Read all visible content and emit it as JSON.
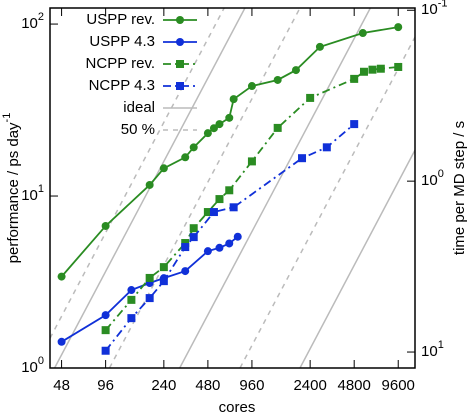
{
  "chart_data": {
    "type": "line",
    "x_label": "cores",
    "y_label": "performance / ps day^-1",
    "y2_label": "time per MD step / s",
    "xscale": "log",
    "yscale": "log",
    "y2scale": "log",
    "xlim": [
      40,
      12500
    ],
    "ylim": [
      1,
      124
    ],
    "y2lim": [
      12.4,
      0.097
    ],
    "xticks": [
      48,
      96,
      240,
      480,
      960,
      2400,
      4800,
      9600
    ],
    "yticks": [
      {
        "value": 1,
        "label": "10^0"
      },
      {
        "value": 10,
        "label": "10^1"
      },
      {
        "value": 100,
        "label": "10^2"
      }
    ],
    "y2ticks": [
      {
        "value": 0.1,
        "label": "10^-1"
      },
      {
        "value": 1,
        "label": "10^0"
      },
      {
        "value": 10,
        "label": "10^1"
      }
    ],
    "legend": "top-left",
    "series": [
      {
        "name": "USPP rev.",
        "color": "#2a8c22",
        "marker": "circle",
        "dash": "solid",
        "x": [
          48,
          96,
          192,
          240,
          336,
          384,
          480,
          528,
          576,
          672,
          720,
          960,
          1440,
          1920,
          2800,
          5500,
          9600
        ],
        "values": [
          3.4,
          6.7,
          11.6,
          14.5,
          16.8,
          19.2,
          23.2,
          24.8,
          26.2,
          28.5,
          36.6,
          43.6,
          47.3,
          54,
          73.7,
          88.7,
          96
        ]
      },
      {
        "name": "USPP 4.3",
        "color": "#1030d8",
        "marker": "circle",
        "dash": "solid",
        "x": [
          48,
          96,
          144,
          192,
          240,
          336,
          480,
          576,
          672,
          768
        ],
        "values": [
          1.42,
          2.03,
          2.84,
          3.12,
          3.33,
          3.66,
          4.78,
          5.0,
          5.3,
          5.8
        ]
      },
      {
        "name": "NCPP rev.",
        "color": "#2a8c22",
        "marker": "square",
        "dash": "dashdot",
        "x": [
          96,
          144,
          192,
          240,
          336,
          384,
          480,
          576,
          672,
          960,
          1440,
          2400,
          4800,
          5600,
          6400,
          7300,
          9600
        ],
        "values": [
          1.66,
          2.49,
          3.34,
          3.86,
          5.33,
          6.5,
          8.07,
          9.6,
          10.8,
          15.9,
          24.9,
          37.2,
          48,
          52.8,
          54.3,
          55,
          56.3
        ]
      },
      {
        "name": "NCPP 4.3",
        "color": "#1030d8",
        "marker": "square",
        "dash": "dashdot",
        "x": [
          96,
          144,
          192,
          240,
          336,
          384,
          528,
          720,
          2112,
          3120,
          4800
        ],
        "values": [
          1.26,
          1.95,
          2.55,
          3.2,
          5.05,
          5.77,
          8.07,
          8.6,
          16.6,
          19.2,
          26.2
        ]
      }
    ],
    "reference_lines": [
      {
        "name": "ideal",
        "color": "#bbbbbb",
        "dash": "solid",
        "segments": [
          {
            "x": [
              43,
              860
            ],
            "values": [
              1,
              124
            ]
          },
          {
            "x": [
              308,
              6190
            ],
            "values": [
              1,
              124
            ]
          },
          {
            "x": [
              2045,
              12500
            ],
            "values": [
              1,
              18.5
            ]
          }
        ]
      },
      {
        "name": "50 %",
        "color": "#bbbbbb",
        "dash": "dashed",
        "segments": [
          {
            "x": [
              40,
              620
            ],
            "values": [
              1.49,
              124
            ]
          },
          {
            "x": [
              102,
              2045
            ],
            "values": [
              1,
              124
            ]
          },
          {
            "x": [
              796,
              12500
            ],
            "values": [
              1,
              84
            ]
          }
        ]
      }
    ]
  }
}
